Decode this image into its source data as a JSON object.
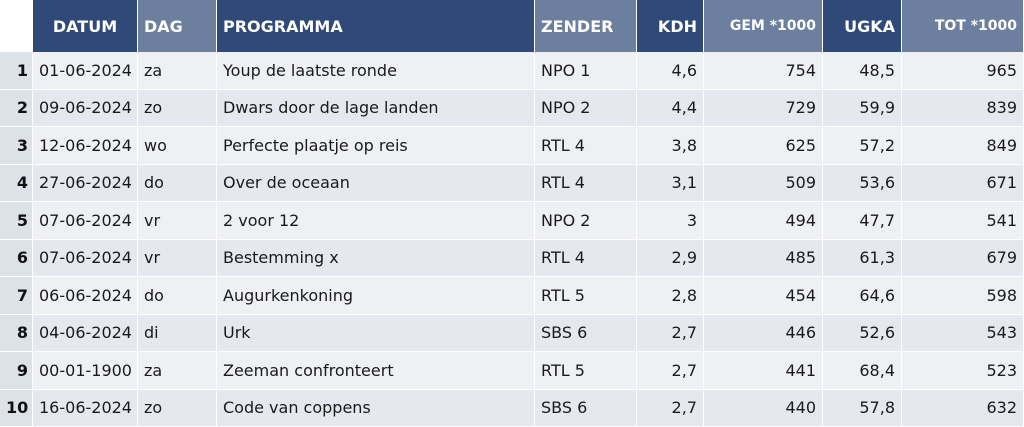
{
  "headers": {
    "datum": "DATUM",
    "dag": "DAG",
    "programma": "PROGRAMMA",
    "zender": "ZENDER",
    "kdh": "KDH",
    "gem": "GEM *1000",
    "ugka": "UGKA",
    "tot": "TOT *1000"
  },
  "rows": [
    {
      "idx": "1",
      "datum": "01-06-2024",
      "dag": "za",
      "programma": "Youp de laatste ronde",
      "zender": "NPO 1",
      "kdh": "4,6",
      "gem": "754",
      "ugka": "48,5",
      "tot": "965"
    },
    {
      "idx": "2",
      "datum": "09-06-2024",
      "dag": "zo",
      "programma": "Dwars door de lage landen",
      "zender": "NPO 2",
      "kdh": "4,4",
      "gem": "729",
      "ugka": "59,9",
      "tot": "839"
    },
    {
      "idx": "3",
      "datum": "12-06-2024",
      "dag": "wo",
      "programma": "Perfecte plaatje op reis",
      "zender": "RTL 4",
      "kdh": "3,8",
      "gem": "625",
      "ugka": "57,2",
      "tot": "849"
    },
    {
      "idx": "4",
      "datum": "27-06-2024",
      "dag": "do",
      "programma": "Over de oceaan",
      "zender": "RTL 4",
      "kdh": "3,1",
      "gem": "509",
      "ugka": "53,6",
      "tot": "671"
    },
    {
      "idx": "5",
      "datum": "07-06-2024",
      "dag": "vr",
      "programma": "2 voor 12",
      "zender": "NPO 2",
      "kdh": "3",
      "gem": "494",
      "ugka": "47,7",
      "tot": "541"
    },
    {
      "idx": "6",
      "datum": "07-06-2024",
      "dag": "vr",
      "programma": "Bestemming x",
      "zender": "RTL 4",
      "kdh": "2,9",
      "gem": "485",
      "ugka": "61,3",
      "tot": "679"
    },
    {
      "idx": "7",
      "datum": "06-06-2024",
      "dag": "do",
      "programma": "Augurkenkoning",
      "zender": "RTL 5",
      "kdh": "2,8",
      "gem": "454",
      "ugka": "64,6",
      "tot": "598"
    },
    {
      "idx": "8",
      "datum": "04-06-2024",
      "dag": "di",
      "programma": "Urk",
      "zender": "SBS 6",
      "kdh": "2,7",
      "gem": "446",
      "ugka": "52,6",
      "tot": "543"
    },
    {
      "idx": "9",
      "datum": "00-01-1900",
      "dag": "za",
      "programma": "Zeeman confronteert",
      "zender": "RTL 5",
      "kdh": "2,7",
      "gem": "441",
      "ugka": "68,4",
      "tot": "523"
    },
    {
      "idx": "10",
      "datum": "16-06-2024",
      "dag": "zo",
      "programma": "Code van coppens",
      "zender": "SBS 6",
      "kdh": "2,7",
      "gem": "440",
      "ugka": "57,8",
      "tot": "632"
    }
  ]
}
